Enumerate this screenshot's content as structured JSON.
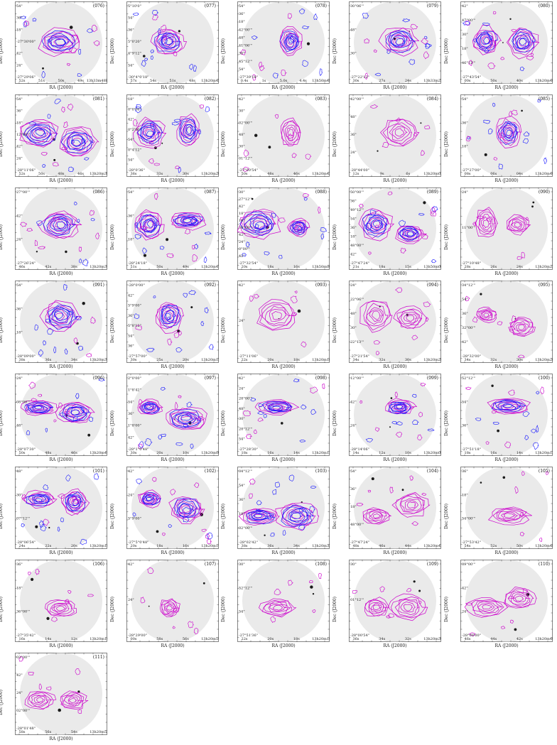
{
  "figure": {
    "axis_x_label": "RA (J2000)",
    "axis_y_label": "Dec (J2000)",
    "colors": {
      "contour_magenta": "#cc00cc",
      "contour_blue": "#1a1aff",
      "optical_bg": "#d9d9d9",
      "source": "#1a1a1a"
    },
    "panels": [
      {
        "id": "(076)",
        "blue": true,
        "dec": [
          "54\"",
          "36\"",
          "18\"",
          "-27°30'00\"",
          "42\"",
          "24\"",
          "-27°29'06\""
        ],
        "ra": [
          "52s",
          "51s",
          "50s",
          "49s",
          "13h33m48s42s"
        ]
      },
      {
        "id": "(077)",
        "blue": true,
        "dec": [
          "5°10'0\"",
          "54\"",
          "36\"",
          "5°0'20\"",
          "4°9'12\"",
          "54\"",
          "-30°4°0'18\""
        ],
        "ra": [
          "57s",
          "54s",
          "51s",
          "48s",
          "13h20m45s"
        ]
      },
      {
        "id": "(078)",
        "blue": true,
        "dec": [
          "54\"",
          "36\"",
          "18\"",
          "42°00'\"",
          "48\"",
          "41°06'\"",
          "36\"",
          "45°12'\"",
          "54\"",
          "-27°39'18\""
        ],
        "ra": [
          "0.4s",
          "1s",
          "5.0s",
          "4.4s",
          "13h50m48s"
        ]
      },
      {
        "id": "(079)",
        "blue": true,
        "dec": [
          "30°06'\"",
          "48\"",
          "30\"",
          "-27°22'12\""
        ],
        "ra": [
          "30s",
          "27s",
          "24s",
          "13h33m22s"
        ]
      },
      {
        "id": "(080)",
        "blue": true,
        "dec": [
          "42\"",
          "47°00'\"",
          "30\"",
          "18\"",
          "46°12'\"",
          "-27°43'54\""
        ],
        "ra": [
          "00s",
          "50s",
          "40s",
          "13h20m40s"
        ]
      },
      {
        "id": "(081)",
        "blue": true,
        "dec": [
          "54\"",
          "36\"",
          "18\"",
          "12°00'\"",
          "42\"",
          "24\"",
          "-28°11'06\""
        ],
        "ra": [
          "52s",
          "50s",
          "48s",
          "46s",
          "13h20m38s"
        ]
      },
      {
        "id": "(082)",
        "blue": true,
        "dec": [
          "18\"",
          "0°0'00\"",
          "42\"",
          "0°2'00\"",
          "54\"",
          "0°4'12\"",
          "54\"",
          "-28°0'36\""
        ],
        "ra": [
          "36s",
          "33s",
          "30s",
          "13h20m26s"
        ]
      },
      {
        "id": "(083)",
        "blue": false,
        "dec": [
          "42\"",
          "30\"",
          "02°00'\"",
          "48\"",
          "30\"",
          "01°12'\"",
          "-27°00'54\""
        ],
        "ra": [
          "50s",
          "48s",
          "46s",
          "13h20m42s"
        ]
      },
      {
        "id": "(084)",
        "blue": false,
        "dec": [
          "42°00'\"",
          "48\"",
          "36\"",
          "24\"",
          "-28°44'00\""
        ],
        "ra": [
          "12s",
          "9s",
          "6s",
          "13h20m03s"
        ]
      },
      {
        "id": "(085)",
        "blue": true,
        "dec": [
          "54\"",
          "36\"",
          "18\"",
          "-27°27'00\""
        ],
        "ra": [
          "08s",
          "06s",
          "04s",
          "13h20m40s"
        ]
      },
      {
        "id": "(086)",
        "blue": true,
        "dec": [
          "27°00'\"",
          "42\"",
          "24\"",
          "-27°26'24\""
        ],
        "ra": [
          "46s",
          "42s",
          "38s",
          "13h20m34s"
        ]
      },
      {
        "id": "(087)",
        "blue": true,
        "dec": [
          "54\"",
          "36\"",
          "18\"",
          "-28°24'18\""
        ],
        "ra": [
          "51s",
          "50s",
          "49s",
          "13h20m47s"
        ]
      },
      {
        "id": "(088)",
        "blue": true,
        "dec": [
          "30\"",
          "27°12'\"",
          "42\"",
          "18\"",
          "18\"",
          "30°00'\"",
          "42\"",
          "24\"",
          "0°00'\"",
          "42\"",
          "-27°32'54\""
        ],
        "ra": [
          "20s",
          "18s",
          "16s",
          "13h50m00s"
        ]
      },
      {
        "id": "(089)",
        "blue": true,
        "dec": [
          "50°00'\"",
          "36\"",
          "49°12'\"",
          "54\"",
          "36\"",
          "18\"",
          "48°00'\"",
          "42\"",
          "-27°47'24\""
        ],
        "ra": [
          "21s",
          "18s",
          "15s",
          "13h50m06s"
        ]
      },
      {
        "id": "(090)",
        "blue": false,
        "dec": [
          "24\"",
          "11°00'\"",
          "-27°10'48\""
        ],
        "ra": [
          "28s",
          "26s",
          "24s",
          "13h20m22s"
        ]
      },
      {
        "id": "(091)",
        "blue": true,
        "dec": [
          "54\"",
          "36\"",
          "18\"",
          "-28°09'00\""
        ],
        "ra": [
          "38s",
          "36s",
          "34s",
          "13h20m34s"
        ]
      },
      {
        "id": "(092)",
        "blue": true,
        "dec": [
          "-28°0'00\"",
          "42\"",
          "5°9'00\"",
          "36\"",
          "5°8'12\"",
          "54\"",
          "36\"",
          "-27°57'00\""
        ],
        "ra": [
          "30s",
          "25s",
          "20s",
          "13h20m15s"
        ]
      },
      {
        "id": "(093)",
        "blue": false,
        "dec": [
          "42\"",
          "24\"",
          "-27°11'06\""
        ],
        "ra": [
          "22s",
          "20s",
          "18s",
          "13h20m16s"
        ]
      },
      {
        "id": "(094)",
        "blue": false,
        "dec": [
          "24\"",
          "22°06'\"",
          "48\"",
          "30\"",
          "22°13'\"",
          "-27°21'54\""
        ],
        "ra": [
          "34s",
          "32s",
          "30s",
          "13h20m28s"
        ]
      },
      {
        "id": "(095)",
        "blue": false,
        "dec": [
          "34°12'\"",
          "54\"",
          "36\"",
          "32°00'\"",
          "42\"",
          "-28°32'00\""
        ],
        "ra": [
          "34s",
          "32s",
          "30s",
          "13h20m26s"
        ]
      },
      {
        "id": "(096)",
        "blue": true,
        "dec": [
          "24\"",
          "08°00'\"",
          "48\"",
          "-28°07'30\""
        ],
        "ra": [
          "50s",
          "48s",
          "46s",
          "13h20m44s"
        ]
      },
      {
        "id": "(097)",
        "blue": true,
        "dec": [
          "2°0'00\"",
          "1°8'42\"",
          "54\"",
          "36\"",
          "1°8'00\"",
          "42\"",
          "-28°1°0'48\""
        ],
        "ra": [
          "30s",
          "20s",
          "10s",
          "13h20m00s"
        ]
      },
      {
        "id": "(098)",
        "blue": true,
        "dec": [
          "42\"",
          "24\"",
          "28°00'\"",
          "48\"",
          "30\"",
          "28°12'\"",
          "54\"",
          "-27°28'30\""
        ],
        "ra": [
          "18s",
          "16s",
          "14s",
          "13h20m12s"
        ]
      },
      {
        "id": "(099)",
        "blue": true,
        "dec": [
          "12°00'\"",
          "42\"",
          "24\"",
          "-28°14'06\""
        ],
        "ra": [
          "14s",
          "12s",
          "10s",
          "13h20m08s"
        ]
      },
      {
        "id": "(100)",
        "blue": true,
        "dec": [
          "52°12'\"",
          "54\"",
          "36\"",
          "-27°51'18\""
        ],
        "ra": [
          "18s",
          "16s",
          "14s",
          "13h20m12s"
        ]
      },
      {
        "id": "(101)",
        "blue": true,
        "dec": [
          "48\"",
          "30\"",
          "07°12'\"",
          "-28°06'54\""
        ],
        "ra": [
          "24s",
          "22s",
          "20s",
          "13h20m18s"
        ]
      },
      {
        "id": "(102)",
        "blue": true,
        "dec": [
          "42\"",
          "24\"",
          "5°9'00\"",
          "-27°5°0'48\""
        ],
        "ra": [
          "20s",
          "18s",
          "16s",
          "13h20m14s"
        ]
      },
      {
        "id": "(103)",
        "blue": true,
        "dec": [
          "04°12'\"",
          "54\"",
          "36\"",
          "18\"",
          "02°00'\"",
          "-28°02'42\""
        ],
        "ra": [
          "38s",
          "36s",
          "34s",
          "13h20m32s"
        ]
      },
      {
        "id": "(104)",
        "blue": false,
        "dec": [
          "54\"",
          "36\"",
          "18\"",
          "48°00'\"",
          "-27°47'24\""
        ],
        "ra": [
          "48s",
          "46s",
          "44s",
          "13h20m42s"
        ]
      },
      {
        "id": "(105)",
        "blue": false,
        "dec": [
          "36\"",
          "18\"",
          "54°00'\"",
          "-27°53'42\""
        ],
        "ra": [
          "54s",
          "52s",
          "50s",
          "13h20m48s"
        ]
      },
      {
        "id": "(106)",
        "blue": false,
        "dec": [
          "36\"",
          "18\"",
          "36°00'\"",
          "-27°35'42\""
        ],
        "ra": [
          "16s",
          "14s",
          "12s",
          "13h20m10s"
        ]
      },
      {
        "id": "(107)",
        "blue": false,
        "dec": [
          "42\"",
          "24\"",
          "-28°29'00\""
        ],
        "ra": [
          "00s",
          "58s",
          "56s",
          "13h20m54s"
        ]
      },
      {
        "id": "(108)",
        "blue": false,
        "dec": [
          "30\"",
          "52°12'\"",
          "54\"",
          "-27°51'36\""
        ],
        "ra": [
          "22s",
          "20s",
          "18s",
          "13h20m16s"
        ]
      },
      {
        "id": "(109)",
        "blue": false,
        "dec": [
          "30\"",
          "01°12'\"",
          "-28°00'54\""
        ],
        "ra": [
          "36s",
          "34s",
          "32s",
          "13h20m30s"
        ]
      },
      {
        "id": "(110)",
        "blue": false,
        "dec": [
          "09°00'\"",
          "42\"",
          "24\"",
          "-28°08'00\""
        ],
        "ra": [
          "46s",
          "44s",
          "42s",
          "13h20m40s"
        ]
      },
      {
        "id": "(111)",
        "blue": false,
        "dec": [
          "03°00'\"",
          "42\"",
          "24\"",
          "02°00'\"",
          "-28°01'48\""
        ],
        "ra": [
          "58s",
          "56s",
          "54s",
          "13h20m52s"
        ]
      }
    ]
  }
}
